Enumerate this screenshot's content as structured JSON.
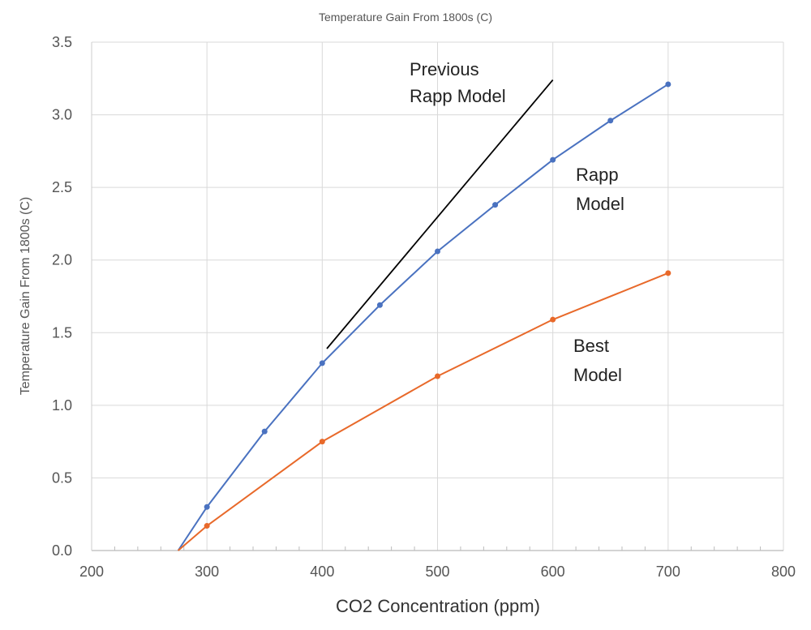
{
  "chart_data": {
    "type": "line",
    "title": "Temperature Gain From 1800s (C)",
    "xlabel": "CO2 Concentration (ppm)",
    "ylabel": "Temperature Gain From 1800s (C)",
    "xlim": [
      200,
      800
    ],
    "ylim": [
      0,
      3.5
    ],
    "xticks": [
      "200",
      "300",
      "400",
      "500",
      "600",
      "700",
      "800"
    ],
    "yticks": [
      "0.0",
      "0.5",
      "1.0",
      "1.5",
      "2.0",
      "2.5",
      "3.0",
      "3.5"
    ],
    "grid": true,
    "series": [
      {
        "name": "Rapp Model",
        "color": "#4a72c0",
        "markers": true,
        "x": [
          275,
          300,
          350,
          400,
          450,
          500,
          550,
          600,
          650,
          700
        ],
        "y": [
          0,
          0.3,
          0.82,
          1.29,
          1.69,
          2.06,
          2.38,
          2.69,
          2.96,
          3.21
        ]
      },
      {
        "name": "Best Model",
        "color": "#e8692a",
        "markers": true,
        "x": [
          275,
          300,
          400,
          500,
          600,
          700
        ],
        "y": [
          0,
          0.17,
          0.75,
          1.2,
          1.59,
          1.91
        ]
      },
      {
        "name": "Previous Rapp Model",
        "color": "#000000",
        "markers": false,
        "x": [
          404,
          600
        ],
        "y": [
          1.39,
          3.24
        ]
      }
    ],
    "annotations": {
      "previous": [
        "Previous",
        "Rapp Model"
      ],
      "rapp": [
        "Rapp",
        "Model"
      ],
      "best": [
        "Best",
        "Model"
      ]
    }
  }
}
